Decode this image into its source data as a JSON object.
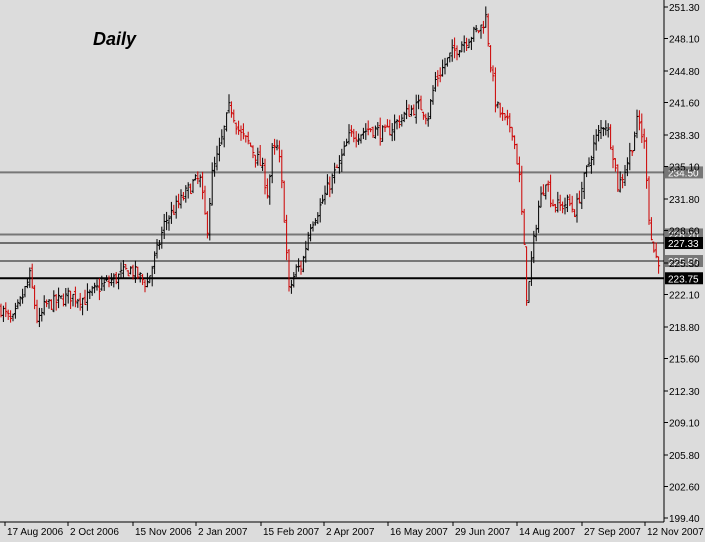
{
  "chart_data": {
    "type": "ohlc",
    "title": "Daily",
    "ylim": [
      199.4,
      251.3
    ],
    "y_ticks": [
      "251.30",
      "248.10",
      "244.80",
      "241.60",
      "238.30",
      "235.10",
      "231.80",
      "228.60",
      "225.30",
      "222.10",
      "218.80",
      "215.60",
      "212.30",
      "209.10",
      "205.80",
      "202.60",
      "199.40"
    ],
    "x_ticks": [
      "17 Aug 2006",
      "2 Oct 2006",
      "15 Nov 2006",
      "2 Jan 2007",
      "15 Feb 2007",
      "2 Apr 2007",
      "16 May 2007",
      "29 Jun 2007",
      "14 Aug 2007",
      "27 Sep 2007",
      "12 Nov 2007"
    ],
    "horizontal_levels": [
      {
        "label": "234.50",
        "value": 234.5,
        "color": "#777777"
      },
      {
        "label": "228.20",
        "value": 228.2,
        "color": "#777777"
      },
      {
        "label": "227.33",
        "value": 227.33,
        "color": "#000000"
      },
      {
        "label": "225.50",
        "value": 225.5,
        "color": "#777777"
      },
      {
        "label": "223.75",
        "value": 223.75,
        "color": "#000000"
      }
    ],
    "path": [
      [
        0,
        220.8
      ],
      [
        12,
        219.2
      ],
      [
        24,
        222.3
      ],
      [
        30,
        224.0
      ],
      [
        38,
        219.0
      ],
      [
        45,
        221.0
      ],
      [
        55,
        221.3
      ],
      [
        70,
        222.0
      ],
      [
        85,
        221.6
      ],
      [
        100,
        222.9
      ],
      [
        115,
        223.7
      ],
      [
        130,
        224.7
      ],
      [
        147,
        223.2
      ],
      [
        157,
        226.5
      ],
      [
        165,
        229.5
      ],
      [
        180,
        231.5
      ],
      [
        193,
        233.4
      ],
      [
        200,
        233.8
      ],
      [
        207,
        228.5
      ],
      [
        212,
        234.2
      ],
      [
        220,
        237.0
      ],
      [
        230,
        241.4
      ],
      [
        240,
        238.4
      ],
      [
        250,
        237.3
      ],
      [
        262,
        235.0
      ],
      [
        268,
        232.2
      ],
      [
        272,
        236.5
      ],
      [
        278,
        237.0
      ],
      [
        283,
        232.0
      ],
      [
        289,
        222.4
      ],
      [
        296,
        224.6
      ],
      [
        302,
        225.0
      ],
      [
        310,
        229.2
      ],
      [
        320,
        231.0
      ],
      [
        330,
        233.4
      ],
      [
        340,
        235.5
      ],
      [
        350,
        238.3
      ],
      [
        360,
        238.5
      ],
      [
        370,
        239.0
      ],
      [
        385,
        238.4
      ],
      [
        400,
        239.9
      ],
      [
        410,
        240.8
      ],
      [
        420,
        241.3
      ],
      [
        428,
        240.2
      ],
      [
        435,
        243.8
      ],
      [
        450,
        246.3
      ],
      [
        460,
        247.5
      ],
      [
        470,
        248.3
      ],
      [
        480,
        249.1
      ],
      [
        486,
        250.3
      ],
      [
        490,
        246.0
      ],
      [
        496,
        241.3
      ],
      [
        505,
        239.6
      ],
      [
        512,
        239.0
      ],
      [
        519,
        234.5
      ],
      [
        524,
        227.0
      ],
      [
        527,
        221.3
      ],
      [
        532,
        226.0
      ],
      [
        538,
        230.8
      ],
      [
        546,
        234.0
      ],
      [
        552,
        231.4
      ],
      [
        560,
        231.0
      ],
      [
        568,
        231.5
      ],
      [
        575,
        230.5
      ],
      [
        584,
        233.7
      ],
      [
        595,
        237.7
      ],
      [
        605,
        239.7
      ],
      [
        612,
        237.2
      ],
      [
        618,
        233.0
      ],
      [
        624,
        234.5
      ],
      [
        632,
        237.2
      ],
      [
        638,
        240.0
      ],
      [
        645,
        237.0
      ],
      [
        650,
        228.4
      ],
      [
        655,
        226.0
      ],
      [
        660,
        225.5
      ]
    ],
    "bar_spacing": 2.4
  }
}
